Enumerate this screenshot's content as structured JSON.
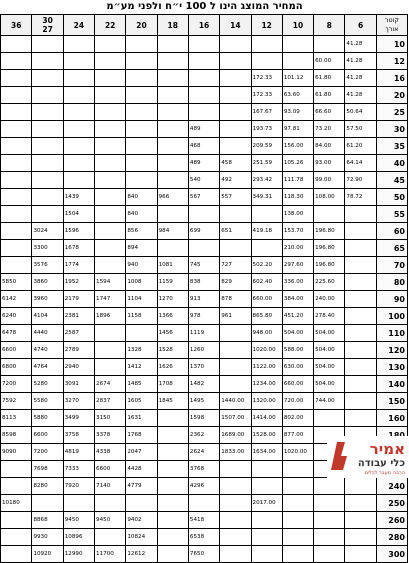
{
  "title": "המחיר המוצג הינו ל 100 י״ח ולפני מע״מ",
  "header": {
    "diameter_label": "קוטר",
    "length_label": "אורך",
    "lengths": [
      "6",
      "8",
      "10",
      "12",
      "14",
      "16",
      "18",
      "20",
      "22",
      "24",
      "30\n27",
      "36"
    ]
  },
  "rows": [
    {
      "d": "10",
      "v": [
        "41.28",
        "",
        "",
        "",
        "",
        "",
        "",
        "",
        "",
        "",
        "",
        ""
      ]
    },
    {
      "d": "12",
      "v": [
        "41.28",
        "60.00",
        "",
        "",
        "",
        "",
        "",
        "",
        "",
        "",
        "",
        ""
      ]
    },
    {
      "d": "16",
      "v": [
        "41.28",
        "61.80",
        "101.12",
        "172.33",
        "",
        "",
        "",
        "",
        "",
        "",
        "",
        ""
      ]
    },
    {
      "d": "20",
      "v": [
        "41.28",
        "61.80",
        "63.60",
        "172.33",
        "",
        "",
        "",
        "",
        "",
        "",
        "",
        ""
      ]
    },
    {
      "d": "25",
      "v": [
        "50.64",
        "66.60",
        "93.09",
        "167.67",
        "",
        "",
        "",
        "",
        "",
        "",
        "",
        ""
      ]
    },
    {
      "d": "30",
      "v": [
        "57.50",
        "73.20",
        "97.81",
        "193.73",
        "",
        "489",
        "",
        "",
        "",
        "",
        "",
        ""
      ]
    },
    {
      "d": "35",
      "v": [
        "61.20",
        "84.00",
        "156.00",
        "209.59",
        "",
        "468",
        "",
        "",
        "",
        "",
        "",
        ""
      ]
    },
    {
      "d": "40",
      "v": [
        "64.14",
        "93.00",
        "105.26",
        "251.59",
        "458",
        "489",
        "",
        "",
        "",
        "",
        "",
        ""
      ]
    },
    {
      "d": "45",
      "v": [
        "72.90",
        "99.00",
        "111.78",
        "293.42",
        "492",
        "540",
        "",
        "",
        "",
        "",
        "",
        ""
      ]
    },
    {
      "d": "50",
      "v": [
        "78.72",
        "108.00",
        "118.30",
        "349.31",
        "557",
        "567",
        "966",
        "840",
        "",
        "1439",
        "",
        ""
      ]
    },
    {
      "d": "55",
      "v": [
        "",
        "",
        "138.00",
        "",
        "",
        "",
        "",
        "840",
        "",
        "1504",
        "",
        ""
      ]
    },
    {
      "d": "60",
      "v": [
        "",
        "196.80",
        "153.70",
        "419.18",
        "651",
        "699",
        "984",
        "856",
        "",
        "1596",
        "3024",
        ""
      ]
    },
    {
      "d": "65",
      "v": [
        "",
        "196.80",
        "210.00",
        "",
        "",
        "",
        "",
        "894",
        "",
        "1678",
        "3300",
        ""
      ]
    },
    {
      "d": "70",
      "v": [
        "",
        "196.80",
        "297.60",
        "502.20",
        "727",
        "745",
        "1081",
        "940",
        "",
        "1774",
        "3576",
        ""
      ]
    },
    {
      "d": "80",
      "v": [
        "",
        "225.60",
        "336.00",
        "602.40",
        "829",
        "838",
        "1159",
        "1008",
        "1594",
        "1952",
        "3860",
        "5850"
      ]
    },
    {
      "d": "90",
      "v": [
        "",
        "240.00",
        "384.00",
        "660.00",
        "878",
        "913",
        "1270",
        "1104",
        "1747",
        "2179",
        "3960",
        "6142"
      ]
    },
    {
      "d": "100",
      "v": [
        "",
        "278.40",
        "451.20",
        "865.80",
        "961",
        "978",
        "1366",
        "1158",
        "1896",
        "2381",
        "4104",
        "6240"
      ]
    },
    {
      "d": "110",
      "v": [
        "",
        "504.00",
        "504.00",
        "948.00",
        "",
        "1119",
        "1456",
        "",
        "",
        "2587",
        "4440",
        "6478"
      ]
    },
    {
      "d": "120",
      "v": [
        "",
        "504.00",
        "588.00",
        "1020.00",
        "",
        "1260",
        "1528",
        "1328",
        "",
        "2789",
        "4740",
        "6600"
      ]
    },
    {
      "d": "130",
      "v": [
        "",
        "504.00",
        "630.00",
        "1122.00",
        "",
        "1370",
        "1626",
        "1412",
        "",
        "2940",
        "4764",
        "6800"
      ]
    },
    {
      "d": "140",
      "v": [
        "",
        "504.00",
        "660.00",
        "1234.00",
        "",
        "1482",
        "1708",
        "1485",
        "2674",
        "3091",
        "5280",
        "7200"
      ]
    },
    {
      "d": "150",
      "v": [
        "",
        "744.00",
        "720.00",
        "1320.00",
        "1440.00",
        "1495",
        "1845",
        "1605",
        "2837",
        "3270",
        "5580",
        "7592"
      ]
    },
    {
      "d": "160",
      "v": [
        "",
        "",
        "802.00",
        "1414.00",
        "1507.00",
        "1598",
        "",
        "1631",
        "3150",
        "3499",
        "5880",
        "8113"
      ]
    },
    {
      "d": "180",
      "v": [
        "",
        "",
        "877.00",
        "1528.00",
        "1689.00",
        "2362",
        "",
        "1768",
        "3378",
        "3758",
        "6600",
        "8598"
      ]
    },
    {
      "d": "200",
      "v": [
        "",
        "",
        "1020.00",
        "1634.00",
        "1833.00",
        "2624",
        "",
        "2047",
        "4338",
        "4819",
        "7200",
        "9090"
      ]
    },
    {
      "d": "220",
      "v": [
        "",
        "",
        "",
        "",
        "",
        "3768",
        "",
        "4428",
        "6600",
        "7333",
        "7698",
        ""
      ]
    },
    {
      "d": "240",
      "v": [
        "",
        "",
        "",
        "",
        "",
        "4296",
        "",
        "4779",
        "7140",
        "7920",
        "8280",
        ""
      ]
    },
    {
      "d": "250",
      "v": [
        "",
        "",
        "",
        "2017.00",
        "",
        "",
        "",
        "",
        "",
        "",
        "",
        "10180"
      ]
    },
    {
      "d": "260",
      "v": [
        "",
        "",
        "",
        "",
        "",
        "5418",
        "",
        "9402",
        "9450",
        "9450",
        "8868",
        ""
      ]
    },
    {
      "d": "280",
      "v": [
        "",
        "",
        "",
        "",
        "",
        "6538",
        "",
        "10824",
        "",
        "10896",
        "9930",
        ""
      ]
    },
    {
      "d": "300",
      "v": [
        "",
        "",
        "",
        "",
        "",
        "7650",
        "",
        "12612",
        "11700",
        "12990",
        "10920",
        ""
      ]
    }
  ],
  "logo": {
    "brand": "אמיר",
    "sub": "כלי עבודה",
    "tagline": "הרבה מעבר לכלים",
    "color": "#c0392b"
  }
}
